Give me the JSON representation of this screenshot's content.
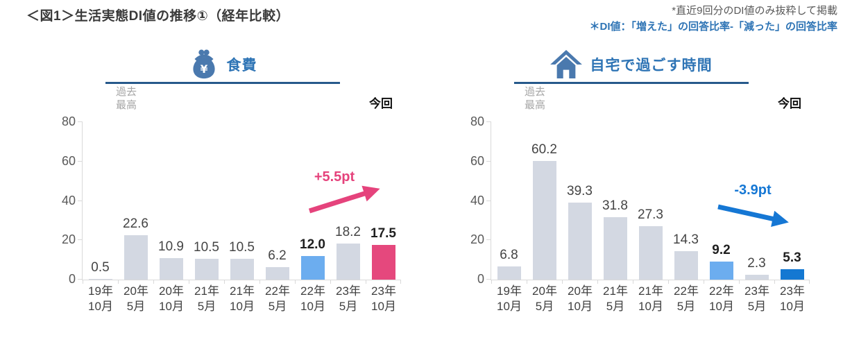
{
  "header": {
    "title": "＜図1＞生活実態DI値の推移①（経年比較）",
    "notes": [
      {
        "text": "*直近9回分のDI値のみ抜粋して掲載"
      },
      {
        "text": "＊DI値：「増えた」の回答比率-「減った」の回答比率"
      }
    ]
  },
  "palette": {
    "bar_gray": "#d3d8e2",
    "bar_lightblue": "#6cadef",
    "bar_pink": "#e5487d",
    "bar_blue": "#1478d2",
    "axis": "#d9d9d9",
    "accent_blue_text": "#2e74b5",
    "header_underline": "#27598b",
    "icon_blue": "#4a79ae"
  },
  "chart_data": [
    {
      "type": "bar",
      "title": "食費",
      "icon": "purse-icon",
      "past_high": [
        "過去",
        "最高"
      ],
      "current_label": "今回",
      "categories": [
        [
          "19年",
          "10月"
        ],
        [
          "20年",
          "5月"
        ],
        [
          "20年",
          "10月"
        ],
        [
          "21年",
          "5月"
        ],
        [
          "21年",
          "10月"
        ],
        [
          "22年",
          "5月"
        ],
        [
          "22年",
          "10月"
        ],
        [
          "23年",
          "5月"
        ],
        [
          "23年",
          "10月"
        ]
      ],
      "values": [
        0.5,
        22.6,
        10.9,
        10.5,
        10.5,
        6.2,
        12.0,
        18.2,
        17.5
      ],
      "value_labels": [
        "0.5",
        "22.6",
        "10.9",
        "10.5",
        "10.5",
        "6.2",
        "12.0",
        "18.2",
        "17.5"
      ],
      "emphasis": [
        false,
        false,
        false,
        false,
        false,
        false,
        true,
        false,
        true
      ],
      "bar_colors": [
        "gray",
        "gray",
        "gray",
        "gray",
        "gray",
        "gray",
        "lightblue",
        "gray",
        "pink"
      ],
      "ylim": [
        0,
        80
      ],
      "yticks": [
        0,
        20,
        40,
        60,
        80
      ],
      "grid": false,
      "annotation": {
        "label": "+5.5pt",
        "direction": "up",
        "color": "#e5437c"
      }
    },
    {
      "type": "bar",
      "title": "自宅で過ごす時間",
      "icon": "house-icon",
      "past_high": [
        "過去",
        "最高"
      ],
      "current_label": "今回",
      "categories": [
        [
          "19年",
          "10月"
        ],
        [
          "20年",
          "5月"
        ],
        [
          "20年",
          "10月"
        ],
        [
          "21年",
          "5月"
        ],
        [
          "21年",
          "10月"
        ],
        [
          "22年",
          "5月"
        ],
        [
          "22年",
          "10月"
        ],
        [
          "23年",
          "5月"
        ],
        [
          "23年",
          "10月"
        ]
      ],
      "values": [
        6.8,
        60.2,
        39.3,
        31.8,
        27.3,
        14.3,
        9.2,
        2.3,
        5.3
      ],
      "value_labels": [
        "6.8",
        "60.2",
        "39.3",
        "31.8",
        "27.3",
        "14.3",
        "9.2",
        "2.3",
        "5.3"
      ],
      "emphasis": [
        false,
        false,
        false,
        false,
        false,
        false,
        true,
        false,
        true
      ],
      "bar_colors": [
        "gray",
        "gray",
        "gray",
        "gray",
        "gray",
        "gray",
        "lightblue",
        "gray",
        "blue"
      ],
      "ylim": [
        0,
        80
      ],
      "yticks": [
        0,
        20,
        40,
        60,
        80
      ],
      "grid": false,
      "annotation": {
        "label": "-3.9pt",
        "direction": "down",
        "color": "#1577d4"
      }
    }
  ]
}
